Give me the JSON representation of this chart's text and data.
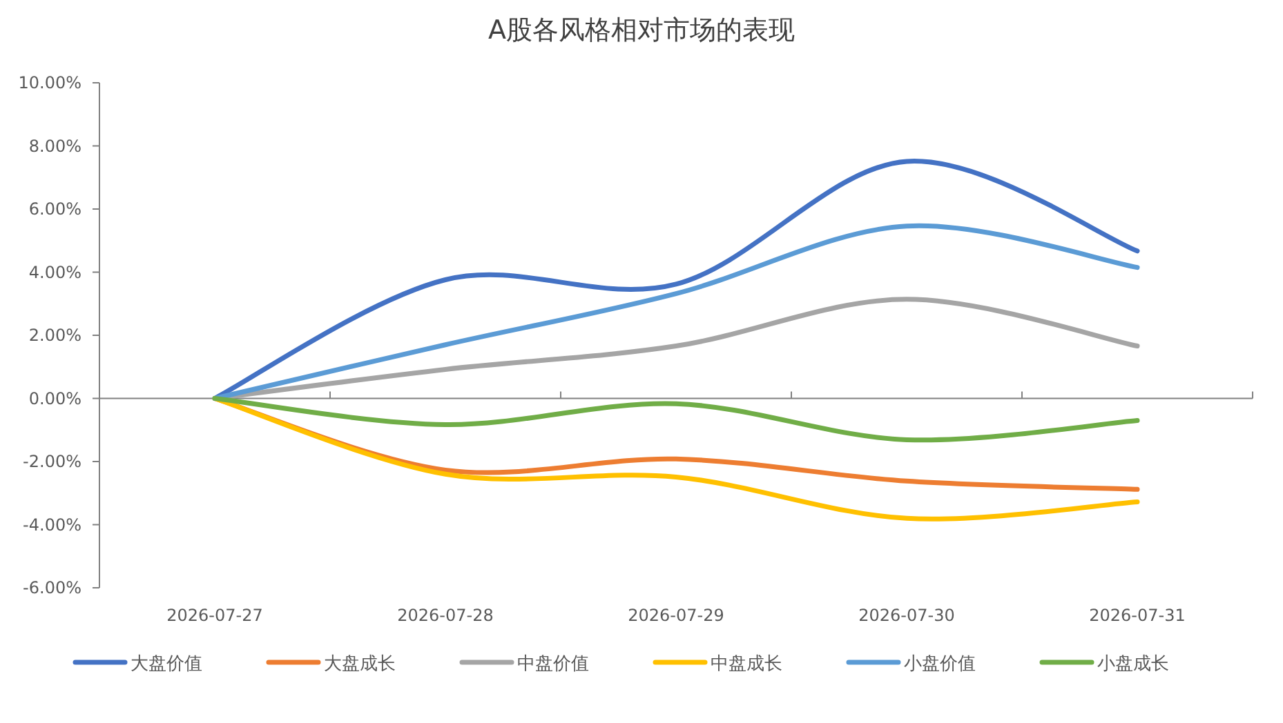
{
  "chart_data": {
    "type": "line",
    "title": "A股各风格相对市场的表现",
    "categories": [
      "2026-07-27",
      "2026-07-28",
      "2026-07-29",
      "2026-07-30",
      "2026-07-31"
    ],
    "series": [
      {
        "name": "大盘价值",
        "color": "#4472c4",
        "values": [
          0,
          3.76,
          3.62,
          7.51,
          4.67
        ]
      },
      {
        "name": "大盘成长",
        "color": "#ed7d31",
        "values": [
          0,
          -2.27,
          -1.92,
          -2.62,
          -2.88
        ]
      },
      {
        "name": "中盘价值",
        "color": "#a5a5a5",
        "values": [
          0,
          0.92,
          1.66,
          3.14,
          1.66
        ]
      },
      {
        "name": "中盘成长",
        "color": "#ffc000",
        "values": [
          0,
          -2.4,
          -2.49,
          -3.8,
          -3.28
        ]
      },
      {
        "name": "小盘价值",
        "color": "#5b9bd5",
        "values": [
          0,
          1.7,
          3.32,
          5.46,
          4.15
        ]
      },
      {
        "name": "小盘成长",
        "color": "#70ad47",
        "values": [
          0,
          -0.83,
          -0.17,
          -1.31,
          -0.7
        ]
      }
    ],
    "ylim": [
      -6,
      10
    ],
    "yticks": [
      {
        "value": -6,
        "label": "-6.00%"
      },
      {
        "value": -4,
        "label": "-4.00%"
      },
      {
        "value": -2,
        "label": "-2.00%"
      },
      {
        "value": 0,
        "label": "0.00%"
      },
      {
        "value": 2,
        "label": "2.00%"
      },
      {
        "value": 4,
        "label": "4.00%"
      },
      {
        "value": 6,
        "label": "6.00%"
      },
      {
        "value": 8,
        "label": "8.00%"
      },
      {
        "value": 10,
        "label": "10.00%"
      }
    ],
    "legend": "bottom",
    "marker": "none",
    "line_style": "solid"
  }
}
